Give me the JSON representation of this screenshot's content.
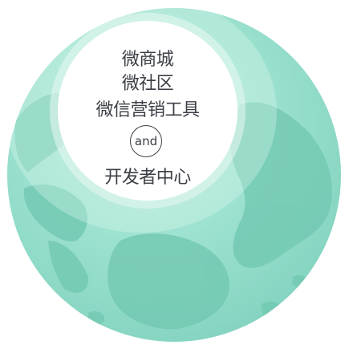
{
  "lines": {
    "line1": "微商城",
    "line2": "微社区",
    "line3": "微信营销工具",
    "connector": "and",
    "line5": "开发者中心"
  },
  "colors": {
    "globe_base": "#8fd9c7",
    "globe_land": "#6fc6b1",
    "globe_light": "#c8efe4",
    "inner_disc": "#ffffff",
    "text": "#3b3f45"
  },
  "icons": {
    "background": "globe-icon",
    "badge": "and-circle"
  }
}
